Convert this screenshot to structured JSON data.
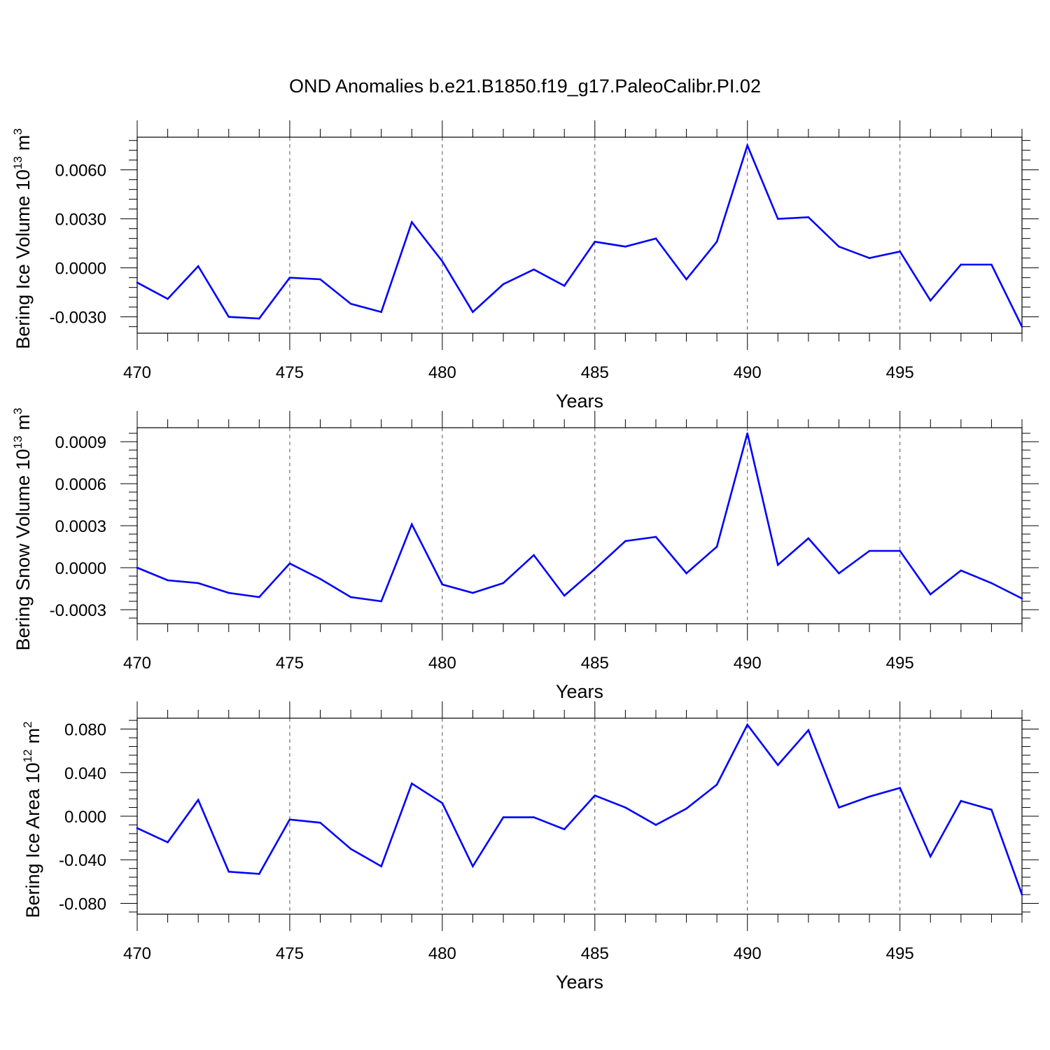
{
  "title": "OND Anomalies b.e21.B1850.f19_g17.PaleoCalibr.PI.02",
  "colors": {
    "line": "#0000ff",
    "frame": "#000000",
    "grid": "#555555"
  },
  "chart_data": [
    {
      "type": "line",
      "title": "OND Anomalies b.e21.B1850.f19_g17.PaleoCalibr.PI.02",
      "xlabel": "Years",
      "ylabel_main": "Bering Ice Volume 10",
      "ylabel_sup": "13",
      "ylabel_unit": "m",
      "ylabel_unit_sup": "3",
      "xlim": [
        470,
        499
      ],
      "ylim": [
        -0.004,
        0.008
      ],
      "xticks": [
        470,
        475,
        480,
        485,
        490,
        495
      ],
      "xtick_labels": [
        "470",
        "475",
        "480",
        "485",
        "490",
        "495"
      ],
      "yticks": [
        -0.003,
        0.0,
        0.003,
        0.006
      ],
      "ytick_labels": [
        "-0.0030",
        "0.0000",
        "0.0030",
        "0.0060"
      ],
      "grid_x": [
        475,
        480,
        485,
        490,
        495
      ],
      "x": [
        470,
        471,
        472,
        473,
        474,
        475,
        476,
        477,
        478,
        479,
        480,
        481,
        482,
        483,
        484,
        485,
        486,
        487,
        488,
        489,
        490,
        491,
        492,
        493,
        494,
        495,
        496,
        497,
        498,
        499
      ],
      "values": [
        -0.0009,
        -0.0019,
        0.0001,
        -0.003,
        -0.0031,
        -0.0006,
        -0.0007,
        -0.0022,
        -0.0027,
        0.0028,
        0.0004,
        -0.0027,
        -0.001,
        -0.0001,
        -0.0011,
        0.0016,
        0.0013,
        0.0018,
        -0.0007,
        0.0016,
        0.0075,
        0.003,
        0.0031,
        0.0013,
        0.0006,
        0.001,
        -0.002,
        0.0002,
        0.0002,
        -0.0036
      ]
    },
    {
      "type": "line",
      "title": "",
      "xlabel": "Years",
      "ylabel_main": "Bering Snow Volume 10",
      "ylabel_sup": "13",
      "ylabel_unit": "m",
      "ylabel_unit_sup": "3",
      "xlim": [
        470,
        499
      ],
      "ylim": [
        -0.0004,
        0.001
      ],
      "xticks": [
        470,
        475,
        480,
        485,
        490,
        495
      ],
      "xtick_labels": [
        "470",
        "475",
        "480",
        "485",
        "490",
        "495"
      ],
      "yticks": [
        -0.0003,
        0.0,
        0.0003,
        0.0006,
        0.0009
      ],
      "ytick_labels": [
        "-0.0003",
        "0.0000",
        "0.0003",
        "0.0006",
        "0.0009"
      ],
      "grid_x": [
        475,
        480,
        485,
        490,
        495
      ],
      "x": [
        470,
        471,
        472,
        473,
        474,
        475,
        476,
        477,
        478,
        479,
        480,
        481,
        482,
        483,
        484,
        485,
        486,
        487,
        488,
        489,
        490,
        491,
        492,
        493,
        494,
        495,
        496,
        497,
        498,
        499
      ],
      "values": [
        0.0,
        -9e-05,
        -0.00011,
        -0.00018,
        -0.00021,
        3e-05,
        -8e-05,
        -0.00021,
        -0.00024,
        0.00031,
        -0.00012,
        -0.00018,
        -0.00011,
        9e-05,
        -0.0002,
        -1e-05,
        0.00019,
        0.00022,
        -4e-05,
        0.00015,
        0.00096,
        2e-05,
        0.00021,
        -4e-05,
        0.00012,
        0.00012,
        -0.00019,
        -2e-05,
        -0.00011,
        -0.00022
      ]
    },
    {
      "type": "line",
      "title": "",
      "xlabel": "Years",
      "ylabel_main": "Bering Ice Area 10",
      "ylabel_sup": "12",
      "ylabel_unit": "m",
      "ylabel_unit_sup": "2",
      "xlim": [
        470,
        499
      ],
      "ylim": [
        -0.09,
        0.09
      ],
      "xticks": [
        470,
        475,
        480,
        485,
        490,
        495
      ],
      "xtick_labels": [
        "470",
        "475",
        "480",
        "485",
        "490",
        "495"
      ],
      "yticks": [
        -0.08,
        -0.04,
        0.0,
        0.04,
        0.08
      ],
      "ytick_labels": [
        "-0.080",
        "-0.040",
        "0.000",
        "0.040",
        "0.080"
      ],
      "grid_x": [
        475,
        480,
        485,
        490,
        495
      ],
      "x": [
        470,
        471,
        472,
        473,
        474,
        475,
        476,
        477,
        478,
        479,
        480,
        481,
        482,
        483,
        484,
        485,
        486,
        487,
        488,
        489,
        490,
        491,
        492,
        493,
        494,
        495,
        496,
        497,
        498,
        499
      ],
      "values": [
        -0.011,
        -0.024,
        0.015,
        -0.051,
        -0.053,
        -0.003,
        -0.006,
        -0.03,
        -0.046,
        0.03,
        0.012,
        -0.046,
        -0.001,
        -0.001,
        -0.012,
        0.019,
        0.008,
        -0.008,
        0.007,
        0.029,
        0.084,
        0.047,
        0.079,
        0.008,
        0.018,
        0.026,
        -0.037,
        0.014,
        0.006,
        -0.072
      ]
    }
  ]
}
